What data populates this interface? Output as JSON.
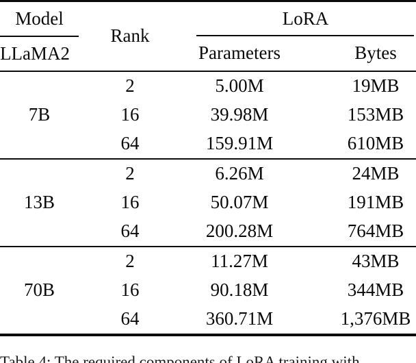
{
  "table": {
    "header": {
      "model_label": "Model",
      "model_sub_label": "LLaMA2",
      "rank_label": "Rank",
      "lora_label": "LoRA",
      "parameters_label": "Parameters",
      "bytes_label": "Bytes"
    },
    "groups": [
      {
        "model": "7B",
        "rows": [
          {
            "rank": "2",
            "parameters": "5.00M",
            "bytes": "19MB"
          },
          {
            "rank": "16",
            "parameters": "39.98M",
            "bytes": "153MB"
          },
          {
            "rank": "64",
            "parameters": "159.91M",
            "bytes": "610MB"
          }
        ]
      },
      {
        "model": "13B",
        "rows": [
          {
            "rank": "2",
            "parameters": "6.26M",
            "bytes": "24MB"
          },
          {
            "rank": "16",
            "parameters": "50.07M",
            "bytes": "191MB"
          },
          {
            "rank": "64",
            "parameters": "200.28M",
            "bytes": "764MB"
          }
        ]
      },
      {
        "model": "70B",
        "rows": [
          {
            "rank": "2",
            "parameters": "11.27M",
            "bytes": "43MB"
          },
          {
            "rank": "16",
            "parameters": "90.18M",
            "bytes": "344MB"
          },
          {
            "rank": "64",
            "parameters": "360.71M",
            "bytes": "1,376MB"
          }
        ]
      }
    ]
  },
  "caption": "Table 4: The required components of LoRA training with"
}
